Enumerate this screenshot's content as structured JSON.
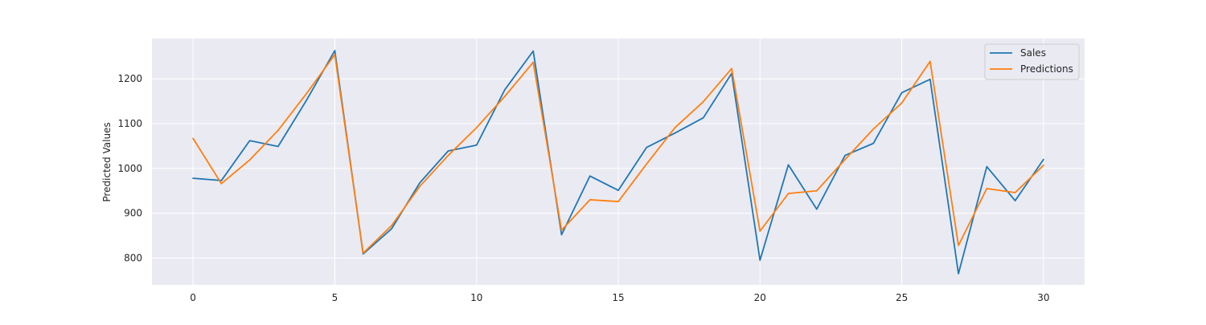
{
  "chart_data": {
    "type": "line",
    "title": "",
    "xlabel": "",
    "ylabel": "Predicted Values",
    "xlim": [
      -1.45,
      31.45
    ],
    "ylim": [
      740,
      1290
    ],
    "xticks": [
      0,
      5,
      10,
      15,
      20,
      25,
      30
    ],
    "yticks": [
      800,
      900,
      1000,
      1100,
      1200
    ],
    "grid": true,
    "legend_position": "top-right",
    "x": [
      0,
      1,
      2,
      3,
      4,
      5,
      6,
      7,
      8,
      9,
      10,
      11,
      12,
      13,
      14,
      15,
      16,
      17,
      18,
      19,
      20,
      21,
      22,
      23,
      24,
      25,
      26,
      27,
      28,
      29,
      30
    ],
    "series": [
      {
        "name": "Sales",
        "color": "#1f77b4",
        "values": [
          978,
          973,
          1062,
          1049,
          1152,
          1263,
          809,
          865,
          968,
          1039,
          1052,
          1176,
          1262,
          852,
          983,
          951,
          1047,
          1079,
          1113,
          1212,
          795,
          1008,
          909,
          1029,
          1056,
          1169,
          1199,
          765,
          1004,
          928,
          1020
        ]
      },
      {
        "name": "Predictions",
        "color": "#ff7f0e",
        "values": [
          1067,
          966,
          1019,
          1085,
          1167,
          1254,
          811,
          872,
          960,
          1029,
          1091,
          1161,
          1237,
          862,
          930,
          926,
          1010,
          1091,
          1149,
          1223,
          860,
          944,
          950,
          1020,
          1088,
          1146,
          1239,
          828,
          955,
          946,
          1007
        ]
      }
    ]
  }
}
